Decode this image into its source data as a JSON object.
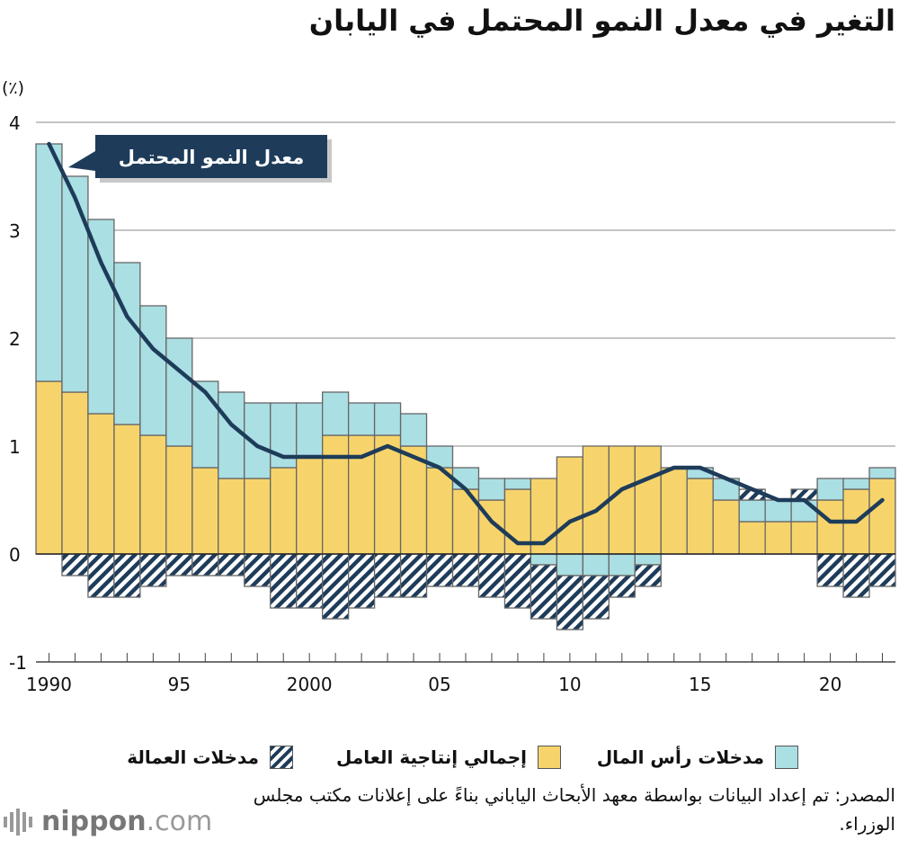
{
  "title": "التغير في معدل النمو المحتمل في اليابان",
  "source": "المصدر: تم إعداد البيانات بواسطة معهد الأبحاث الياباني بناءً على إعلانات مكتب مجلس الوزراء.",
  "brand": {
    "name": "nippon",
    "dot": ".",
    "tld": "com"
  },
  "legend": {
    "capital": "مدخلات رأس المال",
    "tfp": "إجمالي إنتاجية العامل",
    "labor": "مدخلات العمالة"
  },
  "colors": {
    "capital": "#f7d46b",
    "labor": "#aadfe3",
    "tfp_stripe": "#1e3c5a",
    "line": "#1e3c5a",
    "bar_border": "#666666"
  },
  "chart_data": {
    "type": "bar",
    "stacked": true,
    "unit_label": "(٪)",
    "ylim": [
      -1,
      4
    ],
    "yticks": [
      "-1",
      "0",
      "1",
      "2",
      "3",
      "4"
    ],
    "xtick_labels": [
      {
        "year": 1990,
        "label": "1990"
      },
      {
        "year": 1995,
        "label": "95"
      },
      {
        "year": 2000,
        "label": "2000"
      },
      {
        "year": 2005,
        "label": "05"
      },
      {
        "year": 2010,
        "label": "10"
      },
      {
        "year": 2015,
        "label": "15"
      },
      {
        "year": 2020,
        "label": "20"
      }
    ],
    "years": [
      1990,
      1991,
      1992,
      1993,
      1994,
      1995,
      1996,
      1997,
      1998,
      1999,
      2000,
      2001,
      2002,
      2003,
      2004,
      2005,
      2006,
      2007,
      2008,
      2009,
      2010,
      2011,
      2012,
      2013,
      2014,
      2015,
      2016,
      2017,
      2018,
      2019,
      2020,
      2021,
      2022
    ],
    "series": [
      {
        "name": "مدخلات رأس المال",
        "key": "capital",
        "values": [
          1.6,
          1.5,
          1.3,
          1.2,
          1.1,
          1.0,
          0.8,
          0.7,
          0.7,
          0.8,
          0.9,
          1.1,
          1.1,
          1.1,
          1.0,
          0.8,
          0.6,
          0.5,
          0.6,
          0.7,
          0.9,
          1.0,
          1.0,
          1.0,
          0.8,
          0.7,
          0.5,
          0.3,
          0.3,
          0.3,
          0.5,
          0.6,
          0.7
        ]
      },
      {
        "name": "مدخلات العمالة",
        "key": "labor",
        "values": [
          2.2,
          2.0,
          1.8,
          1.5,
          1.2,
          1.0,
          0.8,
          0.8,
          0.7,
          0.6,
          0.5,
          0.4,
          0.3,
          0.3,
          0.3,
          0.2,
          0.2,
          0.2,
          0.1,
          -0.1,
          -0.2,
          -0.2,
          -0.2,
          -0.1,
          0.0,
          0.1,
          0.2,
          0.2,
          0.2,
          0.2,
          0.2,
          0.1,
          0.1
        ]
      },
      {
        "name": "إجمالي إنتاجية العامل",
        "key": "tfp",
        "values": [
          0.0,
          -0.2,
          -0.4,
          -0.4,
          -0.3,
          -0.2,
          -0.2,
          -0.2,
          -0.3,
          -0.5,
          -0.5,
          -0.6,
          -0.5,
          -0.4,
          -0.4,
          -0.3,
          -0.3,
          -0.4,
          -0.5,
          -0.5,
          -0.5,
          -0.4,
          -0.2,
          -0.2,
          0.0,
          0.0,
          0.0,
          0.1,
          0.0,
          0.1,
          -0.3,
          -0.4,
          -0.3
        ]
      }
    ],
    "line": {
      "name": "معدل النمو المحتمل",
      "values": [
        3.8,
        3.3,
        2.7,
        2.2,
        1.9,
        1.7,
        1.5,
        1.2,
        1.0,
        0.9,
        0.9,
        0.9,
        0.9,
        1.0,
        0.9,
        0.8,
        0.6,
        0.3,
        0.1,
        0.1,
        0.3,
        0.4,
        0.6,
        0.7,
        0.8,
        0.8,
        0.7,
        0.6,
        0.5,
        0.5,
        0.3,
        0.3,
        0.5
      ]
    }
  }
}
